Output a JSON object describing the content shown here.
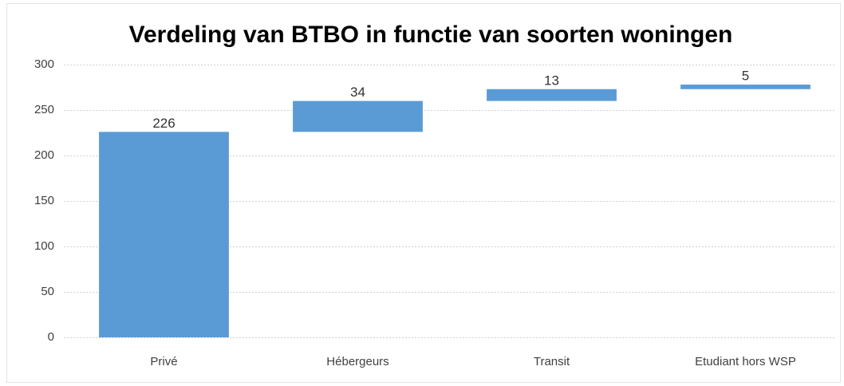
{
  "chart_data": {
    "type": "waterfall",
    "title": "Verdeling van BTBO in functie van soorten woningen",
    "categories": [
      "Privé",
      "Hébergeurs",
      "Transit",
      "Etudiant hors WSP"
    ],
    "values": [
      226,
      34,
      13,
      5
    ],
    "color": "#5b9bd5",
    "ylim": [
      0,
      300
    ],
    "yticks": [
      0,
      50,
      100,
      150,
      200,
      250,
      300
    ],
    "grid": true
  }
}
